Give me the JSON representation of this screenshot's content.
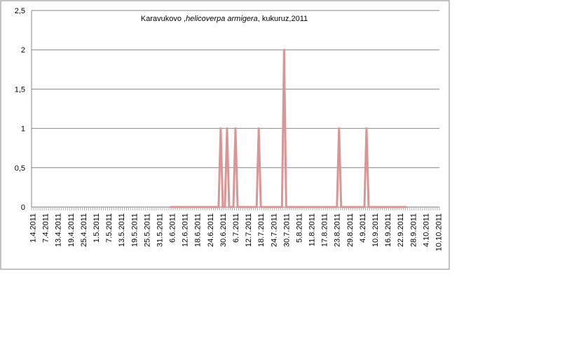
{
  "chart_data": {
    "type": "line",
    "title": [
      "Karavukovo ,",
      "helicoverpa armigera",
      ", kukuruz,2011"
    ],
    "categories": [
      "1.4.2011",
      null,
      null,
      null,
      null,
      null,
      "7.4.2011",
      null,
      null,
      null,
      null,
      null,
      "13.4.2011",
      null,
      null,
      null,
      null,
      null,
      "19.4.2011",
      null,
      null,
      null,
      null,
      null,
      "25.4.2011",
      null,
      null,
      null,
      null,
      null,
      "1.5.2011",
      null,
      null,
      null,
      null,
      null,
      "7.5.2011",
      null,
      null,
      null,
      null,
      null,
      "13.5.2011",
      null,
      null,
      null,
      null,
      null,
      "19.5.2011",
      null,
      null,
      null,
      null,
      null,
      "25.5.2011",
      null,
      null,
      null,
      null,
      null,
      "31.5.2011",
      null,
      null,
      null,
      null,
      null,
      "6.6.2011",
      null,
      null,
      null,
      null,
      null,
      "12.6.2011",
      null,
      null,
      null,
      null,
      null,
      "18.6.2011",
      null,
      null,
      null,
      null,
      null,
      "24.6.2011",
      null,
      null,
      null,
      null,
      null,
      "30.6.2011",
      null,
      null,
      null,
      null,
      null,
      "6.7.2011",
      null,
      null,
      null,
      null,
      null,
      "12.7.2011",
      null,
      null,
      null,
      null,
      null,
      "18.7.2011",
      null,
      null,
      null,
      null,
      null,
      "24.7.2011",
      null,
      null,
      null,
      null,
      null,
      "30.7.2011",
      null,
      null,
      null,
      null,
      null,
      "5.8.2011",
      null,
      null,
      null,
      null,
      null,
      "11.8.2011",
      null,
      null,
      null,
      null,
      null,
      "17.8.2011",
      null,
      null,
      null,
      null,
      null,
      "23.8.2011",
      null,
      null,
      null,
      null,
      null,
      "29.8.2011",
      null,
      null,
      null,
      null,
      null,
      "4.9.2011",
      null,
      null,
      null,
      null,
      null,
      "10.9.2011",
      null,
      null,
      null,
      null,
      null,
      "16.9.2011",
      null,
      null,
      null,
      null,
      null,
      "22.9.2011",
      null,
      null,
      null,
      null,
      null,
      "28.9.2011",
      null,
      null,
      null,
      null,
      null,
      "4.10.2011",
      null,
      null,
      null,
      null,
      null,
      "10.10.2011"
    ],
    "values": [
      null,
      null,
      null,
      null,
      null,
      null,
      null,
      null,
      null,
      null,
      null,
      null,
      null,
      null,
      null,
      null,
      null,
      null,
      null,
      null,
      null,
      null,
      null,
      null,
      null,
      null,
      null,
      null,
      null,
      null,
      null,
      null,
      null,
      null,
      null,
      null,
      null,
      null,
      null,
      null,
      null,
      null,
      null,
      null,
      null,
      null,
      null,
      null,
      null,
      null,
      null,
      null,
      null,
      null,
      null,
      null,
      null,
      null,
      null,
      null,
      null,
      null,
      null,
      null,
      null,
      0,
      0,
      0,
      0,
      0,
      0,
      0,
      0,
      0,
      0,
      0,
      0,
      0,
      0,
      0,
      0,
      0,
      0,
      0,
      0,
      0,
      0,
      0,
      0,
      1,
      0,
      0,
      1,
      0,
      0,
      0,
      1,
      0,
      0,
      0,
      0,
      0,
      0,
      0,
      0,
      0,
      0,
      1,
      0,
      0,
      0,
      0,
      0,
      0,
      0,
      0,
      0,
      0,
      0,
      2,
      0,
      0,
      0,
      0,
      0,
      0,
      0,
      0,
      0,
      0,
      0,
      0,
      0,
      0,
      0,
      0,
      0,
      0,
      0,
      0,
      0,
      0,
      0,
      0,
      0,
      1,
      0,
      0,
      0,
      0,
      0,
      0,
      0,
      0,
      0,
      0,
      0,
      0,
      1,
      0,
      0,
      0,
      0,
      0,
      0,
      0,
      0,
      0,
      0,
      0,
      0,
      0,
      0,
      0,
      0,
      0,
      0,
      0,
      null,
      null,
      null,
      null,
      null,
      null,
      null,
      null,
      null,
      null,
      null,
      null,
      null,
      null,
      null
    ],
    "color": "#d99694",
    "ylim": [
      0,
      2.5
    ],
    "yticks": [
      0,
      {
        "value": 0.5,
        "label": "0,5"
      },
      1,
      {
        "value": 1.5,
        "label": "1,5"
      },
      2,
      {
        "value": 2.5,
        "label": "2,5"
      }
    ],
    "grid": true
  }
}
